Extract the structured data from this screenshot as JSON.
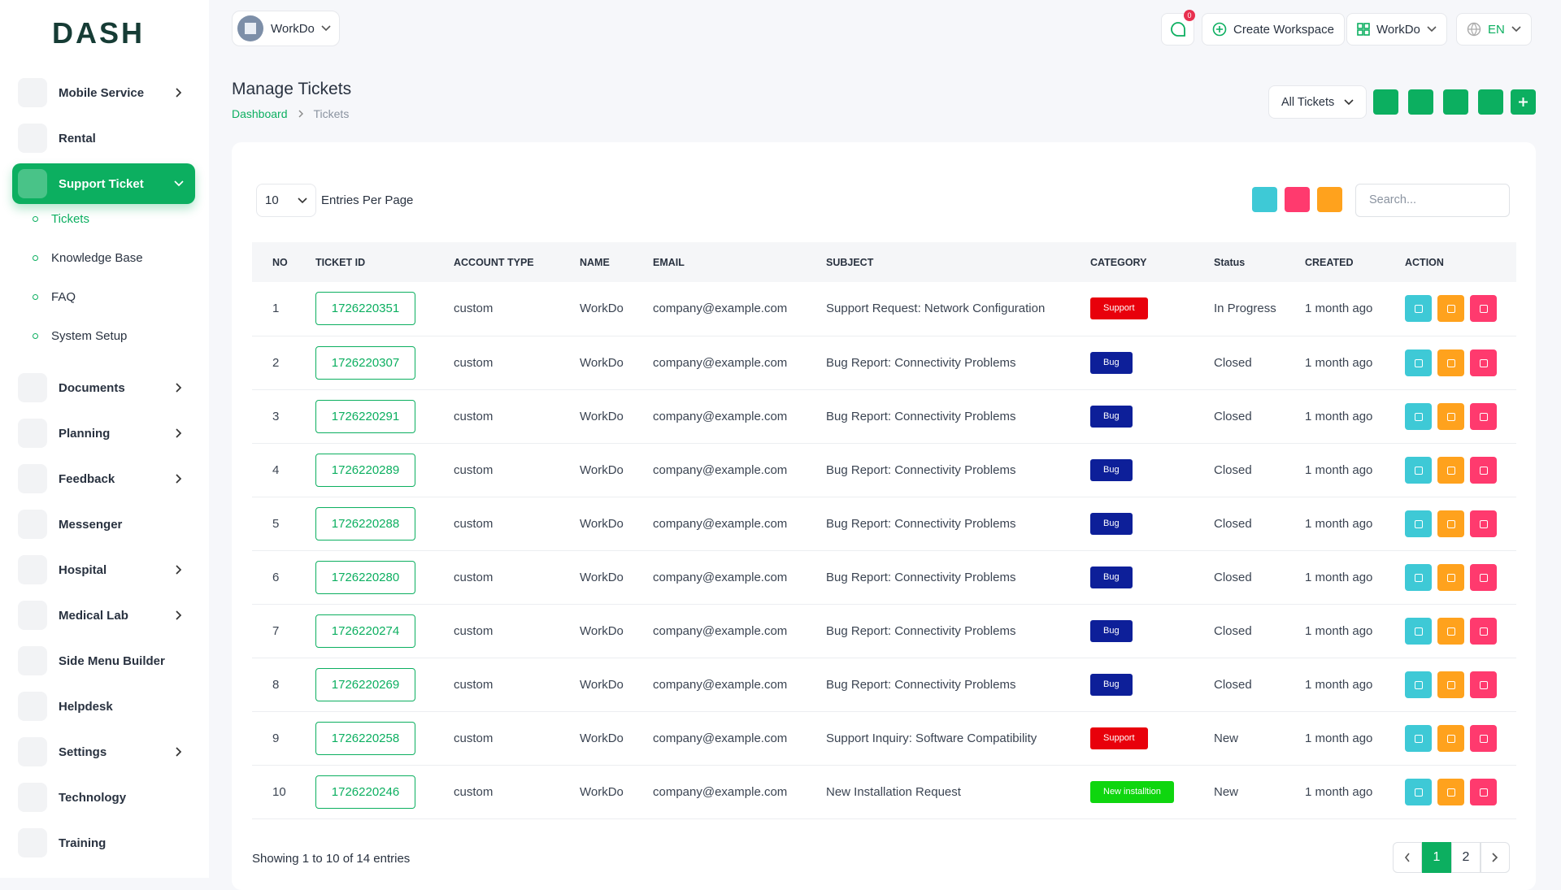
{
  "brand": {
    "logo": "DASH"
  },
  "header": {
    "workspace": "WorkDo",
    "notification_count": "0",
    "create_workspace": "Create Workspace",
    "user": "WorkDo",
    "language": "EN"
  },
  "sidebar": {
    "items": [
      {
        "label": "Mobile Service",
        "has_submenu": true
      },
      {
        "label": "Rental",
        "has_submenu": false
      },
      {
        "label": "Support Ticket",
        "has_submenu": true,
        "active": true,
        "children": [
          {
            "label": "Tickets",
            "active": true
          },
          {
            "label": "Knowledge Base"
          },
          {
            "label": "FAQ"
          },
          {
            "label": "System Setup"
          }
        ]
      },
      {
        "label": "Documents",
        "has_submenu": true
      },
      {
        "label": "Planning",
        "has_submenu": true
      },
      {
        "label": "Feedback",
        "has_submenu": true
      },
      {
        "label": "Messenger",
        "has_submenu": false
      },
      {
        "label": "Hospital",
        "has_submenu": true
      },
      {
        "label": "Medical Lab",
        "has_submenu": true
      },
      {
        "label": "Side Menu Builder",
        "has_submenu": false
      },
      {
        "label": "Helpdesk",
        "has_submenu": false
      },
      {
        "label": "Settings",
        "has_submenu": true
      },
      {
        "label": "Technology",
        "has_submenu": false
      },
      {
        "label": "Training",
        "has_submenu": false
      }
    ]
  },
  "page": {
    "title": "Manage Tickets",
    "breadcrumb": [
      "Dashboard",
      "Tickets"
    ],
    "filter": "All Tickets"
  },
  "table": {
    "entries_per_page": "10",
    "entries_label": "Entries Per Page",
    "search_placeholder": "Search...",
    "columns": [
      "NO",
      "TICKET ID",
      "ACCOUNT TYPE",
      "NAME",
      "EMAIL",
      "SUBJECT",
      "CATEGORY",
      "Status",
      "CREATED",
      "ACTION"
    ],
    "rows": [
      {
        "no": 1,
        "ticket_id": "1726220351",
        "account_type": "custom",
        "name": "WorkDo",
        "email": "company@example.com",
        "subject": "Support Request: Network Configuration",
        "category": "Support",
        "category_color": "#e8000b",
        "status": "In Progress",
        "created": "1 month ago"
      },
      {
        "no": 2,
        "ticket_id": "1726220307",
        "account_type": "custom",
        "name": "WorkDo",
        "email": "company@example.com",
        "subject": "Bug Report: Connectivity Problems",
        "category": "Bug",
        "category_color": "#0d1f99",
        "status": "Closed",
        "created": "1 month ago"
      },
      {
        "no": 3,
        "ticket_id": "1726220291",
        "account_type": "custom",
        "name": "WorkDo",
        "email": "company@example.com",
        "subject": "Bug Report: Connectivity Problems",
        "category": "Bug",
        "category_color": "#0d1f99",
        "status": "Closed",
        "created": "1 month ago"
      },
      {
        "no": 4,
        "ticket_id": "1726220289",
        "account_type": "custom",
        "name": "WorkDo",
        "email": "company@example.com",
        "subject": "Bug Report: Connectivity Problems",
        "category": "Bug",
        "category_color": "#0d1f99",
        "status": "Closed",
        "created": "1 month ago"
      },
      {
        "no": 5,
        "ticket_id": "1726220288",
        "account_type": "custom",
        "name": "WorkDo",
        "email": "company@example.com",
        "subject": "Bug Report: Connectivity Problems",
        "category": "Bug",
        "category_color": "#0d1f99",
        "status": "Closed",
        "created": "1 month ago"
      },
      {
        "no": 6,
        "ticket_id": "1726220280",
        "account_type": "custom",
        "name": "WorkDo",
        "email": "company@example.com",
        "subject": "Bug Report: Connectivity Problems",
        "category": "Bug",
        "category_color": "#0d1f99",
        "status": "Closed",
        "created": "1 month ago"
      },
      {
        "no": 7,
        "ticket_id": "1726220274",
        "account_type": "custom",
        "name": "WorkDo",
        "email": "company@example.com",
        "subject": "Bug Report: Connectivity Problems",
        "category": "Bug",
        "category_color": "#0d1f99",
        "status": "Closed",
        "created": "1 month ago"
      },
      {
        "no": 8,
        "ticket_id": "1726220269",
        "account_type": "custom",
        "name": "WorkDo",
        "email": "company@example.com",
        "subject": "Bug Report: Connectivity Problems",
        "category": "Bug",
        "category_color": "#0d1f99",
        "status": "Closed",
        "created": "1 month ago"
      },
      {
        "no": 9,
        "ticket_id": "1726220258",
        "account_type": "custom",
        "name": "WorkDo",
        "email": "company@example.com",
        "subject": "Support Inquiry: Software Compatibility",
        "category": "Support",
        "category_color": "#e8000b",
        "status": "New",
        "created": "1 month ago"
      },
      {
        "no": 10,
        "ticket_id": "1726220246",
        "account_type": "custom",
        "name": "WorkDo",
        "email": "company@example.com",
        "subject": "New Installation Request",
        "category": "New installtion",
        "category_color": "#0fd60f",
        "status": "New",
        "created": "1 month ago"
      }
    ],
    "footer": "Showing 1 to 10 of 14 entries",
    "pages": [
      "1",
      "2"
    ],
    "current_page": "1"
  }
}
